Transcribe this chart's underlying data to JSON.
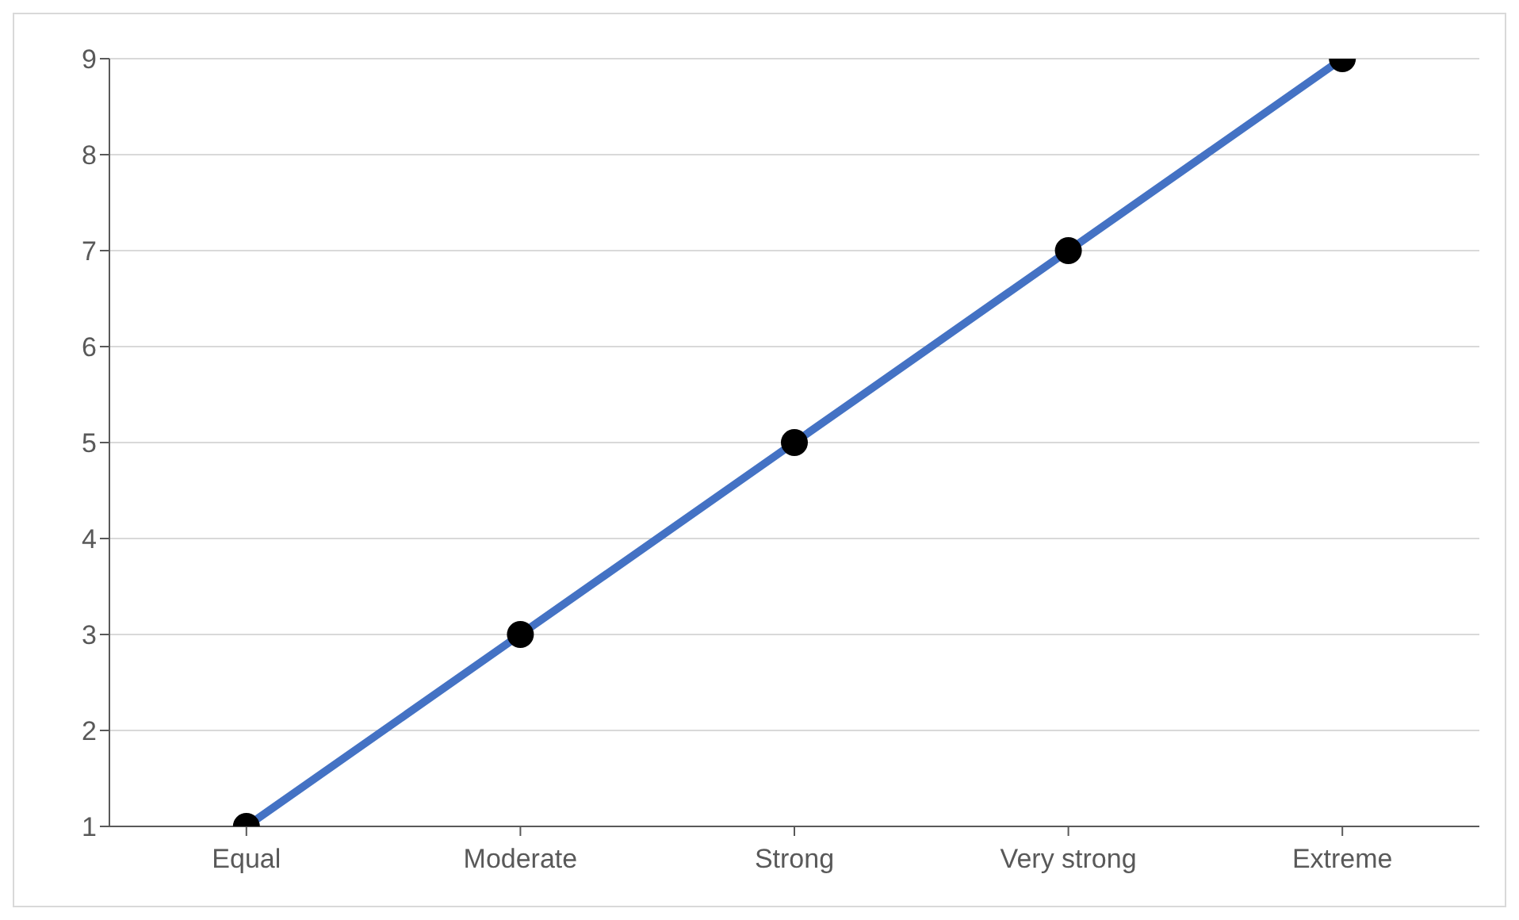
{
  "chart_data": {
    "type": "line",
    "categories": [
      "Equal",
      "Moderate",
      "Strong",
      "Very strong",
      "Extreme"
    ],
    "series": [
      {
        "color": "#4472c4",
        "colors": [
          "#000000",
          "#000000",
          "#000000",
          "#000000",
          "#000000"
        ],
        "values": [
          1,
          3,
          5,
          7,
          9
        ]
      }
    ],
    "ylim": [
      1,
      9
    ],
    "yticks": [
      1,
      2,
      3,
      4,
      5,
      6,
      7,
      8,
      9
    ],
    "grid": "y",
    "marker": "circle",
    "line_style": "solid",
    "legend": false
  }
}
